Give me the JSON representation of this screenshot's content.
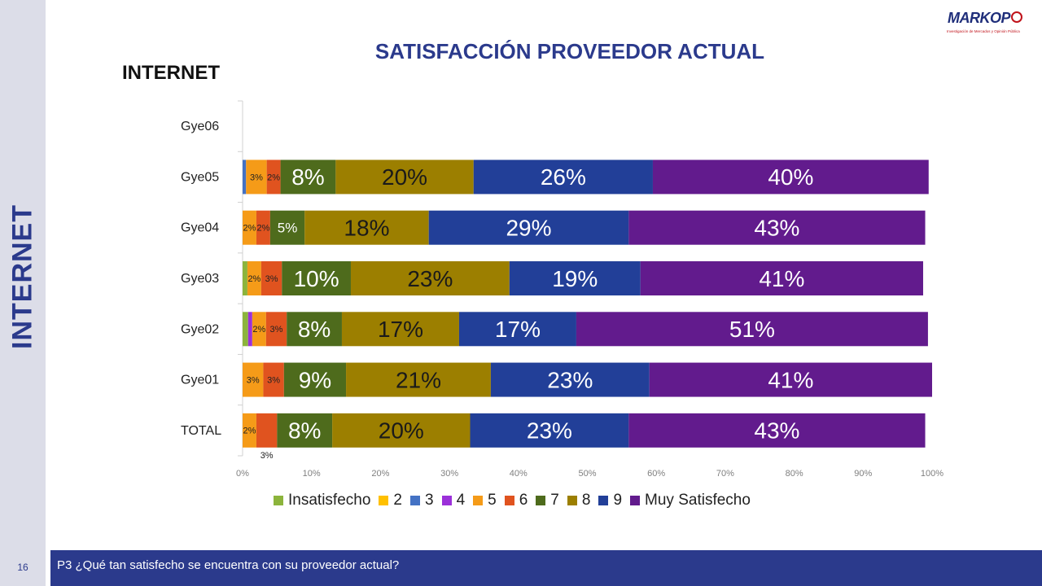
{
  "side_label": "INTERNET",
  "title": "SATISFACCIÓN PROVEEDOR ACTUAL",
  "section_title": "INTERNET",
  "logo": {
    "text": "MARKOP",
    "tagline": "Investigación de Mercados y Opinión Pública"
  },
  "footer": {
    "question": "P3 ¿Qué tan satisfecho se encuentra con su proveedor actual?",
    "page": "16"
  },
  "chart_data": {
    "type": "bar",
    "orientation": "horizontal",
    "stacked": true,
    "percent": true,
    "xlim": [
      0,
      100
    ],
    "x_ticks": [
      "0%",
      "10%",
      "20%",
      "30%",
      "40%",
      "50%",
      "60%",
      "70%",
      "80%",
      "90%",
      "100%"
    ],
    "categories": [
      "Gye06",
      "Gye05",
      "Gye04",
      "Gye03",
      "Gye02",
      "Gye01",
      "TOTAL"
    ],
    "legend_position": "bottom",
    "series": [
      {
        "name": "Insatisfecho",
        "color": "#8cb43c",
        "values": [
          0,
          0,
          0,
          0.7,
          0.8,
          0,
          0
        ]
      },
      {
        "name": "2",
        "color": "#ffc000",
        "values": [
          0,
          0,
          0,
          0,
          0,
          0,
          0
        ]
      },
      {
        "name": "3",
        "color": "#4472c4",
        "values": [
          0,
          0.5,
          0,
          0,
          0,
          0,
          0
        ]
      },
      {
        "name": "4",
        "color": "#9b30d9",
        "values": [
          0,
          0,
          0,
          0,
          0.6,
          0,
          0
        ]
      },
      {
        "name": "5",
        "color": "#f59b18",
        "values": [
          0,
          3,
          2,
          2,
          2,
          3,
          2
        ]
      },
      {
        "name": "6",
        "color": "#e0531f",
        "values": [
          0,
          2,
          2,
          3,
          3,
          3,
          3
        ]
      },
      {
        "name": "7",
        "color": "#4e6b1c",
        "values": [
          0,
          8,
          5,
          10,
          8,
          9,
          8
        ]
      },
      {
        "name": "8",
        "color": "#9c7f00",
        "values": [
          0,
          20,
          18,
          23,
          17,
          21,
          20
        ]
      },
      {
        "name": "9",
        "color": "#223f98",
        "values": [
          0,
          26,
          29,
          19,
          17,
          23,
          23
        ]
      },
      {
        "name": "Muy Satisfecho",
        "color": "#621b8d",
        "values": [
          0,
          40,
          43,
          41,
          51,
          41,
          43
        ]
      }
    ],
    "data_labels": [
      [],
      [
        "",
        "",
        "",
        "",
        "3%",
        "2%",
        "8%",
        "20%",
        "26%",
        "40%"
      ],
      [
        "",
        "",
        "",
        "",
        "2%",
        "2%",
        "5%",
        "18%",
        "29%",
        "43%"
      ],
      [
        "",
        "",
        "",
        "",
        "2%",
        "3%",
        "10%",
        "23%",
        "19%",
        "41%"
      ],
      [
        "",
        "",
        "",
        "",
        "2%",
        "3%",
        "8%",
        "17%",
        "17%",
        "51%"
      ],
      [
        "",
        "",
        "",
        "",
        "3%",
        "3%",
        "9%",
        "21%",
        "23%",
        "41%"
      ],
      [
        "",
        "",
        "",
        "",
        "2%",
        "3%",
        "8%",
        "20%",
        "23%",
        "43%"
      ]
    ]
  }
}
